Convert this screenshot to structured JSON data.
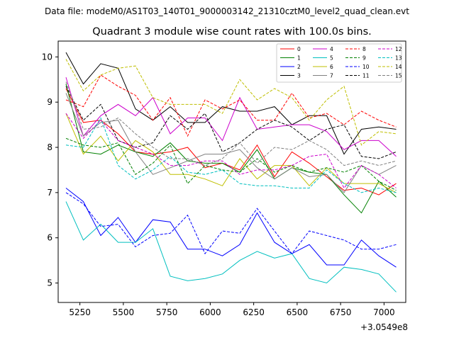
{
  "chart_data": {
    "type": "line",
    "suptitle": "Data file: modeM0/AS1T03_140T01_9000003142_21310cztM0_level2_quad_clean.evt",
    "title": "Quadrant 3 module wise count rates with 100.0s bins.",
    "xlabel": "",
    "ylabel": "",
    "x_offset_label": "+3.0549e8",
    "x_ticks": [
      5250,
      5500,
      5750,
      6000,
      6250,
      6500,
      6750,
      7000
    ],
    "x_tick_labels": [
      "5250",
      "5500",
      "5750",
      "6000",
      "6250",
      "6500",
      "6750",
      "7000"
    ],
    "y_ticks": [
      5,
      6,
      7,
      8,
      9,
      10
    ],
    "y_tick_labels": [
      "5",
      "6",
      "7",
      "8",
      "9",
      "10"
    ],
    "xlim": [
      5125,
      7125
    ],
    "ylim": [
      4.57,
      10.35
    ],
    "grid": false,
    "legend_position": "top-right",
    "x": [
      5170,
      5270,
      5370,
      5470,
      5570,
      5670,
      5770,
      5870,
      5970,
      6070,
      6170,
      6270,
      6370,
      6470,
      6570,
      6670,
      6770,
      6870,
      6970,
      7070
    ],
    "series": [
      {
        "name": "0",
        "color": "#ff0000",
        "dash": "solid",
        "values": [
          9.3,
          8.55,
          8.6,
          8.3,
          7.9,
          7.85,
          7.9,
          8.0,
          7.55,
          7.65,
          7.5,
          8.05,
          7.35,
          7.9,
          7.65,
          7.35,
          7.05,
          7.1,
          6.95,
          7.2
        ]
      },
      {
        "name": "1",
        "color": "#008000",
        "dash": "solid",
        "values": [
          9.4,
          7.9,
          7.85,
          8.05,
          7.9,
          7.8,
          8.1,
          7.7,
          7.65,
          7.65,
          7.45,
          7.95,
          7.3,
          7.55,
          7.45,
          7.4,
          6.95,
          6.55,
          7.25,
          6.9
        ]
      },
      {
        "name": "2",
        "color": "#0000ff",
        "dash": "solid",
        "values": [
          7.1,
          6.8,
          6.05,
          6.45,
          5.9,
          6.4,
          6.35,
          5.75,
          5.75,
          5.6,
          5.85,
          6.55,
          5.9,
          5.65,
          5.85,
          5.4,
          5.4,
          5.95,
          5.6,
          5.35
        ]
      },
      {
        "name": "3",
        "color": "#000000",
        "dash": "solid",
        "values": [
          10.1,
          9.4,
          9.85,
          9.75,
          8.85,
          8.6,
          8.9,
          8.55,
          8.55,
          8.9,
          8.8,
          8.8,
          8.9,
          8.5,
          8.7,
          8.7,
          7.85,
          8.4,
          8.45,
          8.4
        ]
      },
      {
        "name": "4",
        "color": "#cc00cc",
        "dash": "solid",
        "values": [
          9.55,
          8.25,
          8.7,
          8.95,
          8.7,
          9.1,
          8.3,
          8.65,
          8.65,
          8.15,
          9.1,
          8.4,
          8.45,
          8.5,
          8.5,
          8.35,
          7.95,
          8.15,
          8.15,
          7.8
        ]
      },
      {
        "name": "5",
        "color": "#00bfbf",
        "dash": "solid",
        "values": [
          6.8,
          5.95,
          6.3,
          5.9,
          5.9,
          6.2,
          5.15,
          5.05,
          5.1,
          5.2,
          5.5,
          5.7,
          5.55,
          5.65,
          5.1,
          5.0,
          5.35,
          5.3,
          5.2,
          4.8
        ]
      },
      {
        "name": "6",
        "color": "#bfbf00",
        "dash": "solid",
        "values": [
          8.75,
          7.85,
          8.25,
          7.7,
          8.15,
          7.9,
          7.4,
          7.4,
          7.3,
          7.15,
          7.75,
          7.3,
          7.6,
          7.6,
          7.15,
          7.55,
          7.2,
          7.2,
          7.2,
          7.0
        ]
      },
      {
        "name": "7",
        "color": "#808080",
        "dash": "solid",
        "values": [
          9.2,
          8.25,
          8.55,
          8.6,
          7.9,
          7.4,
          7.55,
          7.7,
          7.85,
          7.85,
          7.95,
          7.55,
          7.3,
          7.55,
          7.35,
          7.4,
          7.0,
          7.6,
          7.4,
          7.6
        ]
      },
      {
        "name": "8",
        "color": "#ff0000",
        "dash": "dashed",
        "values": [
          9.05,
          8.9,
          9.6,
          9.35,
          9.15,
          8.6,
          9.1,
          8.25,
          9.05,
          8.85,
          9.05,
          8.6,
          8.6,
          9.2,
          8.65,
          8.75,
          8.5,
          8.8,
          8.6,
          8.45
        ]
      },
      {
        "name": "9",
        "color": "#008000",
        "dash": "dashed",
        "values": [
          8.2,
          8.05,
          8.0,
          8.1,
          7.4,
          7.65,
          8.05,
          7.2,
          7.6,
          7.5,
          7.45,
          7.75,
          7.45,
          7.6,
          7.45,
          7.55,
          7.45,
          7.6,
          7.25,
          7.05
        ]
      },
      {
        "name": "10",
        "color": "#0000ff",
        "dash": "dashed",
        "values": [
          7.0,
          6.75,
          6.25,
          6.3,
          5.8,
          6.05,
          6.1,
          6.5,
          5.65,
          6.15,
          6.1,
          6.65,
          6.15,
          5.65,
          6.15,
          6.05,
          5.95,
          5.75,
          5.75,
          5.85
        ]
      },
      {
        "name": "11",
        "color": "#000000",
        "dash": "dashed",
        "values": [
          9.35,
          8.6,
          8.95,
          8.15,
          8.0,
          8.1,
          8.7,
          8.4,
          8.75,
          7.9,
          8.1,
          8.4,
          8.6,
          8.45,
          8.15,
          8.4,
          8.5,
          7.8,
          7.75,
          7.9
        ]
      },
      {
        "name": "12",
        "color": "#cc00cc",
        "dash": "dashed",
        "values": [
          8.75,
          8.2,
          8.6,
          8.15,
          8.0,
          7.85,
          7.6,
          7.6,
          7.7,
          7.7,
          7.4,
          7.5,
          7.5,
          7.6,
          7.8,
          7.85,
          7.1,
          7.6,
          7.4,
          7.1
        ]
      },
      {
        "name": "13",
        "color": "#00bfbf",
        "dash": "dashed",
        "values": [
          8.05,
          8.0,
          8.65,
          7.6,
          7.3,
          7.5,
          7.8,
          7.45,
          7.4,
          7.5,
          7.2,
          7.15,
          7.15,
          7.1,
          7.1,
          7.5,
          7.2,
          7.0,
          7.1,
          7.0
        ]
      },
      {
        "name": "14",
        "color": "#bfbf00",
        "dash": "dashed",
        "values": [
          9.95,
          9.25,
          9.6,
          9.75,
          9.8,
          9.1,
          8.95,
          8.95,
          8.95,
          8.75,
          9.5,
          9.05,
          9.3,
          9.1,
          8.6,
          9.05,
          9.35,
          8.05,
          8.35,
          8.3
        ]
      },
      {
        "name": "15",
        "color": "#808080",
        "dash": "dashed",
        "values": [
          9.45,
          8.4,
          8.45,
          8.65,
          8.3,
          8.0,
          7.75,
          7.75,
          7.6,
          7.75,
          8.1,
          7.65,
          8.0,
          7.95,
          8.15,
          7.95,
          7.6,
          7.7,
          7.6,
          7.7
        ]
      }
    ]
  }
}
